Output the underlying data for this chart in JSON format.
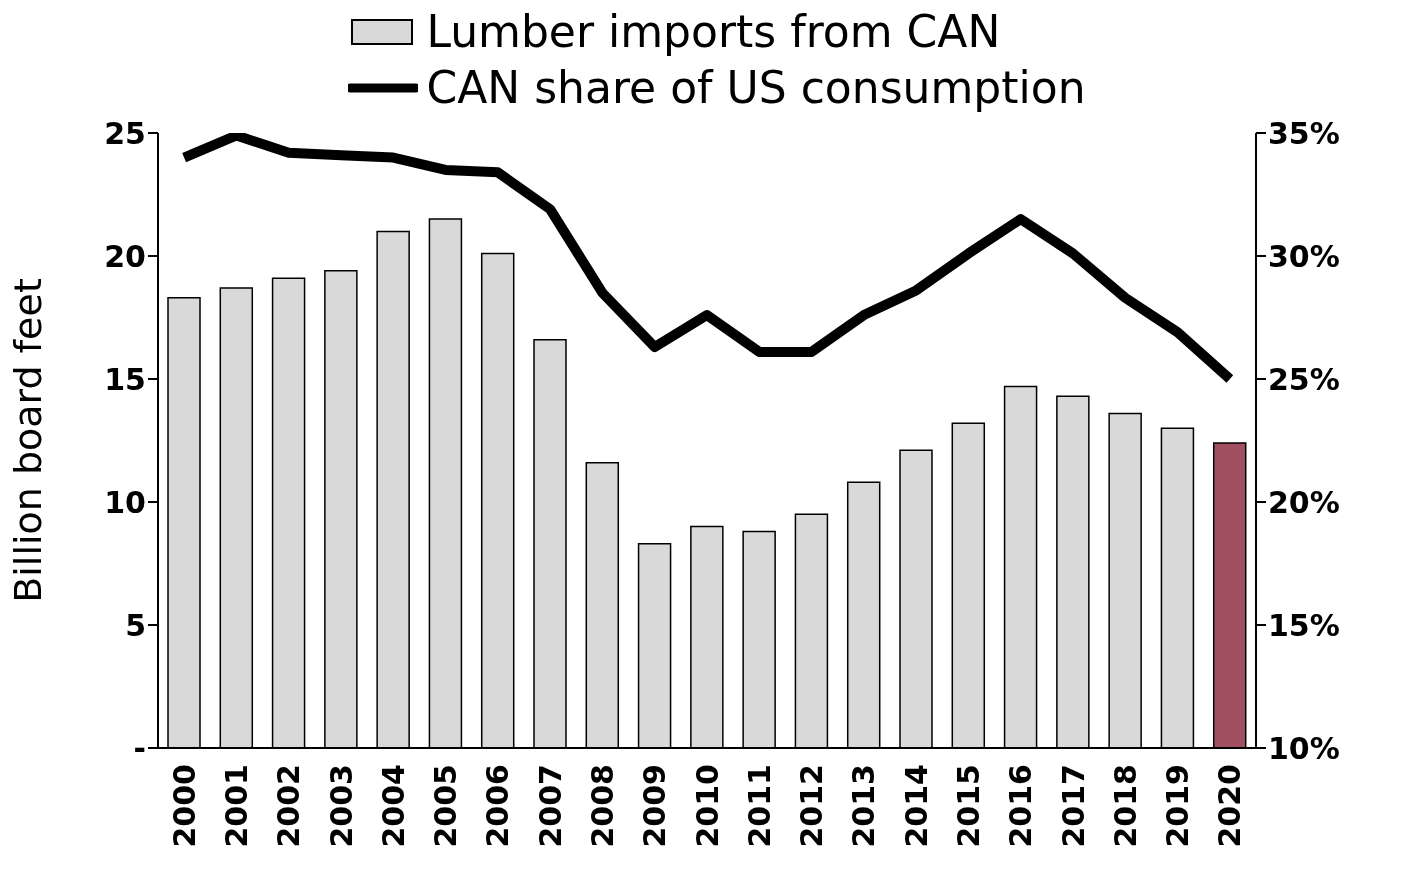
{
  "chart_data": {
    "type": "bar",
    "ylabel": "Billion board feet",
    "categories": [
      "2000",
      "2001",
      "2002",
      "2003",
      "2004",
      "2005",
      "2006",
      "2007",
      "2008",
      "2009",
      "2010",
      "2011",
      "2012",
      "2013",
      "2014",
      "2015",
      "2016",
      "2017",
      "2018",
      "2019",
      "2020"
    ],
    "series": [
      {
        "name": "Lumber imports from CAN",
        "color": "#d9d9d9",
        "colors": [
          "#d9d9d9",
          "#d9d9d9",
          "#d9d9d9",
          "#d9d9d9",
          "#d9d9d9",
          "#d9d9d9",
          "#d9d9d9",
          "#d9d9d9",
          "#d9d9d9",
          "#d9d9d9",
          "#d9d9d9",
          "#d9d9d9",
          "#d9d9d9",
          "#d9d9d9",
          "#d9d9d9",
          "#d9d9d9",
          "#d9d9d9",
          "#d9d9d9",
          "#d9d9d9",
          "#d9d9d9",
          "#a05060"
        ],
        "values": [
          18.3,
          18.7,
          19.1,
          19.4,
          21.0,
          21.5,
          20.1,
          16.6,
          11.6,
          8.3,
          9.0,
          8.8,
          9.5,
          10.8,
          12.1,
          13.2,
          14.7,
          14.3,
          13.6,
          13.0,
          12.4
        ]
      },
      {
        "name": "CAN share of US consumption",
        "type": "line",
        "axis": "y2",
        "color": "#000000",
        "values": [
          34.0,
          34.9,
          34.2,
          34.1,
          34.0,
          33.5,
          33.4,
          31.9,
          28.5,
          26.3,
          27.6,
          26.1,
          26.1,
          27.6,
          28.6,
          30.1,
          31.5,
          30.1,
          28.3,
          26.9,
          25.0
        ]
      }
    ],
    "ylim": [
      0,
      25
    ],
    "yticks": [
      {
        "value": 0,
        "label": "-"
      },
      5,
      10,
      15,
      20,
      25
    ],
    "y2lim": [
      10,
      35
    ],
    "y2ticks": [
      {
        "value": 10,
        "label": "10%"
      },
      {
        "value": 15,
        "label": "15%"
      },
      {
        "value": 20,
        "label": "20%"
      },
      {
        "value": 25,
        "label": "25%"
      },
      {
        "value": 30,
        "label": "30%"
      },
      {
        "value": 35,
        "label": "35%"
      }
    ],
    "legend": "top",
    "grid": false,
    "marker": "none",
    "line_style": "solid"
  }
}
